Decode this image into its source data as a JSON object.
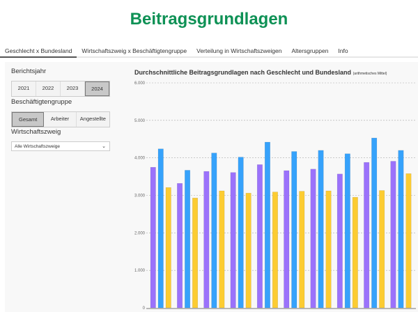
{
  "header": {
    "title": "Beitragsgrundlagen"
  },
  "tabs": [
    {
      "label": "Geschlecht x Bundesland",
      "active": true
    },
    {
      "label": "Wirtschaftszweig x Beschäftigtengruppe"
    },
    {
      "label": "Verteilung in Wirtschaftszweigen"
    },
    {
      "label": "Altersgruppen"
    },
    {
      "label": "Info"
    }
  ],
  "sidebar": {
    "year_label": "Berichtsjahr",
    "years": [
      "2021",
      "2022",
      "2023",
      "2024"
    ],
    "selected_year": "2024",
    "group_label": "Beschäftigtengruppe",
    "groups": [
      "Gesamt",
      "Arbeiter",
      "Angestellte"
    ],
    "selected_group": "Gesamt",
    "sector_label": "Wirtschaftszweig",
    "sector_value": "Alle Wirtschaftszweige"
  },
  "chart_data": {
    "type": "bar",
    "title": "Durchschnittliche Beitragsgrundlagen nach Geschlecht und Bundesland",
    "subtitle": "(arithmetisches Mittel)",
    "ylim": [
      0,
      6000
    ],
    "yticks": [
      "0",
      "1.000",
      "2.000",
      "3.000",
      "4.000",
      "5.000",
      "6.000"
    ],
    "grid": true,
    "colors": [
      "#9b72fb",
      "#36a2fb",
      "#fccc32"
    ],
    "series": [
      {
        "values": [
          3750,
          3320,
          3640,
          3610,
          3820,
          3660,
          3700,
          3570,
          3880,
          3910
        ]
      },
      {
        "values": [
          4240,
          3670,
          4130,
          4020,
          4420,
          4170,
          4200,
          4110,
          4530,
          4200
        ]
      },
      {
        "values": [
          3210,
          2930,
          3120,
          3060,
          3090,
          3110,
          3120,
          2950,
          3130,
          3580
        ]
      }
    ]
  }
}
